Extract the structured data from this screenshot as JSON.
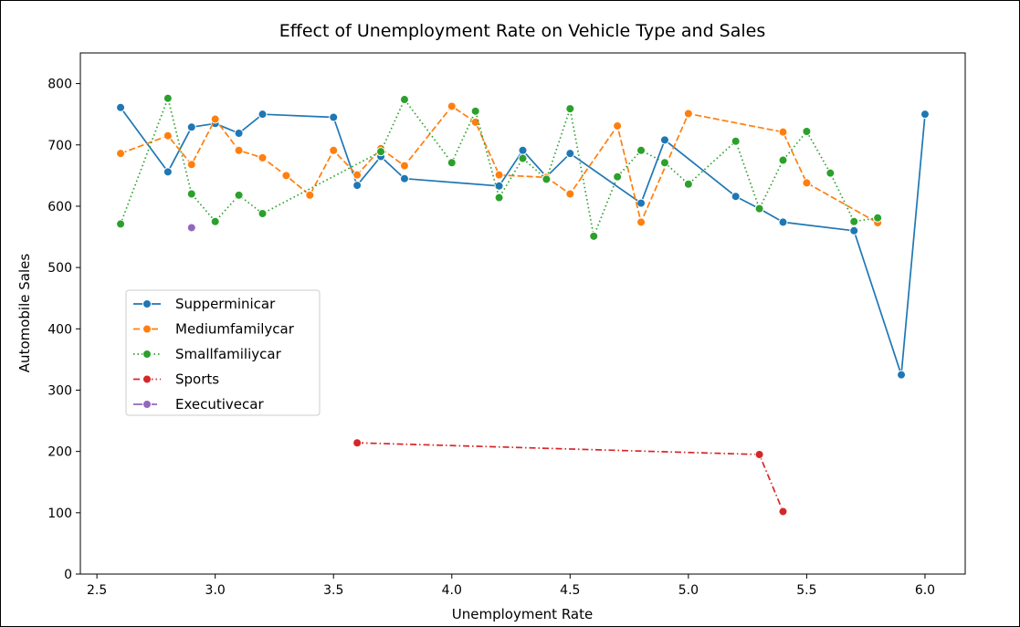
{
  "chart_data": {
    "type": "line",
    "title": "Effect of Unemployment Rate on Vehicle Type and Sales",
    "xlabel": "Unemployment Rate",
    "ylabel": "Automobile Sales",
    "xlim": [
      2.43,
      6.17
    ],
    "ylim": [
      0,
      850
    ],
    "xticks": [
      2.5,
      3.0,
      3.5,
      4.0,
      4.5,
      5.0,
      5.5,
      6.0
    ],
    "xtick_labels": [
      "2.5",
      "3.0",
      "3.5",
      "4.0",
      "4.5",
      "5.0",
      "5.5",
      "6.0"
    ],
    "yticks": [
      0,
      100,
      200,
      300,
      400,
      500,
      600,
      700,
      800
    ],
    "ytick_labels": [
      "0",
      "100",
      "200",
      "300",
      "400",
      "500",
      "600",
      "700",
      "800"
    ],
    "grid": false,
    "legend_position": "center-left",
    "series": [
      {
        "name": "Supperminicar",
        "color": "#1f77b4",
        "dash": "solid",
        "x": [
          2.6,
          2.8,
          2.9,
          3.0,
          3.1,
          3.2,
          3.5,
          3.6,
          3.7,
          3.8,
          4.2,
          4.3,
          4.4,
          4.5,
          4.8,
          4.9,
          5.2,
          5.3,
          5.4,
          5.7,
          5.9,
          6.0
        ],
        "y": [
          761,
          656,
          729,
          735,
          719,
          750,
          745,
          634,
          681,
          645,
          633,
          691,
          648,
          686,
          605,
          708,
          616,
          596,
          574,
          560,
          325,
          750
        ]
      },
      {
        "name": "Mediumfamilycar",
        "color": "#ff7f0e",
        "dash": "dashed",
        "x": [
          2.6,
          2.8,
          2.9,
          3.0,
          3.1,
          3.2,
          3.3,
          3.4,
          3.5,
          3.6,
          3.7,
          3.8,
          4.0,
          4.1,
          4.2,
          4.4,
          4.5,
          4.7,
          4.8,
          5.0,
          5.4,
          5.5,
          5.8
        ],
        "y": [
          686,
          715,
          668,
          742,
          691,
          679,
          650,
          618,
          691,
          651,
          694,
          666,
          763,
          737,
          651,
          647,
          620,
          731,
          574,
          751,
          721,
          638,
          573
        ]
      },
      {
        "name": "Smallfamiliycar",
        "color": "#2ca02c",
        "dash": "dotted",
        "x": [
          2.6,
          2.8,
          2.9,
          3.0,
          3.1,
          3.2,
          3.7,
          3.8,
          4.0,
          4.1,
          4.2,
          4.3,
          4.4,
          4.5,
          4.6,
          4.7,
          4.8,
          4.9,
          5.0,
          5.2,
          5.3,
          5.4,
          5.5,
          5.6,
          5.7,
          5.8
        ],
        "y": [
          571,
          776,
          620,
          575,
          618,
          588,
          689,
          774,
          671,
          755,
          614,
          678,
          644,
          759,
          551,
          648,
          691,
          671,
          636,
          706,
          596,
          675,
          722,
          654,
          575,
          581
        ]
      },
      {
        "name": "Sports",
        "color": "#d62728",
        "dash": "dashdot",
        "x": [
          3.6,
          5.3,
          5.4
        ],
        "y": [
          214,
          195,
          102
        ]
      },
      {
        "name": "Executivecar",
        "color": "#9467bd",
        "dash": "longdash",
        "x": [
          2.9
        ],
        "y": [
          565
        ]
      }
    ]
  }
}
